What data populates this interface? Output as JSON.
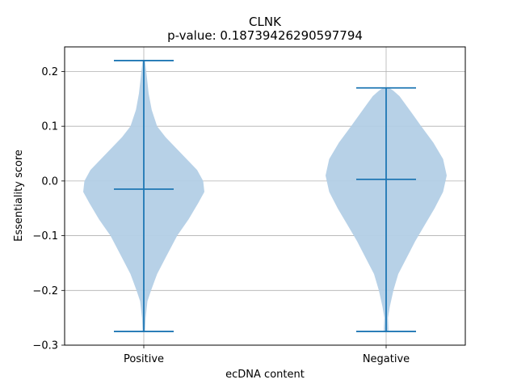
{
  "chart_data": {
    "type": "violin",
    "title": "CLNK",
    "subtitle": "p-value: 0.18739426290597794",
    "xlabel": "ecDNA content",
    "ylabel": "Essentiality score",
    "categories": [
      "Positive",
      "Negative"
    ],
    "ylim": [
      -0.3,
      0.245
    ],
    "yticks": [
      -0.3,
      -0.2,
      -0.1,
      0.0,
      0.1,
      0.2
    ],
    "ytick_labels": [
      "−0.3",
      "−0.2",
      "−0.1",
      "0.0",
      "0.1",
      "0.2"
    ],
    "grid": true,
    "color": "#1f77b4",
    "fill_color": "#b3cfe6",
    "series": [
      {
        "category": "Positive",
        "min": -0.275,
        "max": 0.22,
        "median": -0.015,
        "density": [
          [
            -0.275,
            0.02
          ],
          [
            -0.25,
            0.03
          ],
          [
            -0.22,
            0.06
          ],
          [
            -0.2,
            0.12
          ],
          [
            -0.17,
            0.22
          ],
          [
            -0.14,
            0.36
          ],
          [
            -0.1,
            0.55
          ],
          [
            -0.07,
            0.74
          ],
          [
            -0.04,
            0.9
          ],
          [
            -0.02,
            1.0
          ],
          [
            0.0,
            0.98
          ],
          [
            0.02,
            0.88
          ],
          [
            0.05,
            0.62
          ],
          [
            0.08,
            0.36
          ],
          [
            0.1,
            0.22
          ],
          [
            0.13,
            0.13
          ],
          [
            0.16,
            0.08
          ],
          [
            0.19,
            0.05
          ],
          [
            0.21,
            0.03
          ],
          [
            0.22,
            0.02
          ]
        ]
      },
      {
        "category": "Negative",
        "min": -0.275,
        "max": 0.17,
        "median": 0.003,
        "density": [
          [
            -0.275,
            0.04
          ],
          [
            -0.25,
            0.03
          ],
          [
            -0.23,
            0.06
          ],
          [
            -0.2,
            0.12
          ],
          [
            -0.17,
            0.2
          ],
          [
            -0.14,
            0.34
          ],
          [
            -0.11,
            0.48
          ],
          [
            -0.08,
            0.64
          ],
          [
            -0.05,
            0.8
          ],
          [
            -0.02,
            0.94
          ],
          [
            0.01,
            1.0
          ],
          [
            0.04,
            0.94
          ],
          [
            0.07,
            0.78
          ],
          [
            0.1,
            0.58
          ],
          [
            0.12,
            0.45
          ],
          [
            0.14,
            0.32
          ],
          [
            0.155,
            0.22
          ],
          [
            0.165,
            0.12
          ],
          [
            0.17,
            0.05
          ]
        ]
      }
    ]
  }
}
